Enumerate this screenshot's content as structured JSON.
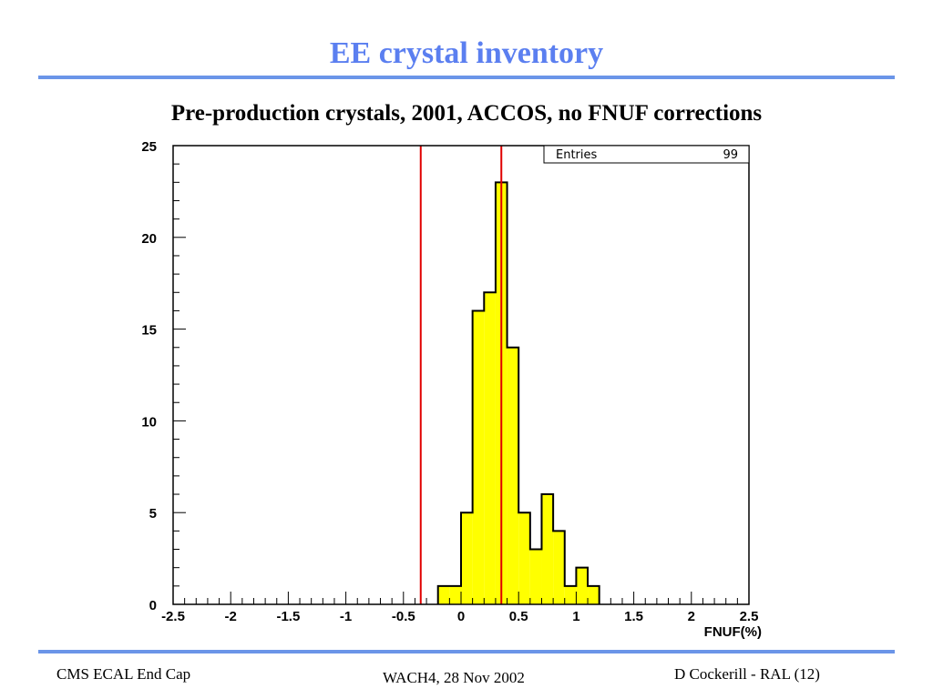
{
  "header": {
    "title": "EE crystal inventory",
    "subtitle": "Pre-production crystals, 2001, ACCOS, no FNUF corrections"
  },
  "footer": {
    "left": "CMS ECAL End Cap",
    "center": "WACH4, 28 Nov 2002",
    "right": "D Cockerill - RAL (12)"
  },
  "colors": {
    "title": "#5b7ff0",
    "rule": "#6b95e8",
    "bar_fill": "#ffff00",
    "bar_stroke": "#000000",
    "cut_line": "#e00000"
  },
  "chart_data": {
    "type": "bar",
    "title": "",
    "xlabel": "FNUF(%)",
    "ylabel": "",
    "xlim": [
      -2.5,
      2.5
    ],
    "ylim": [
      0,
      25
    ],
    "x_ticks": [
      "-2.5",
      "-2",
      "-1.5",
      "-1",
      "-0.5",
      "0",
      "0.5",
      "1",
      "1.5",
      "2",
      "2.5"
    ],
    "y_ticks": [
      "0",
      "5",
      "10",
      "15",
      "20",
      "25"
    ],
    "bin_width": 0.1,
    "bin_edges": [
      -0.2,
      -0.1,
      0.0,
      0.1,
      0.2,
      0.3,
      0.4,
      0.5,
      0.6,
      0.7,
      0.8,
      0.9,
      1.0,
      1.1,
      1.2
    ],
    "values": [
      1,
      1,
      5,
      16,
      17,
      23,
      14,
      5,
      3,
      6,
      4,
      1,
      2,
      1
    ],
    "cut_lines": [
      -0.35,
      0.35
    ],
    "stats_box": {
      "label": "Entries",
      "value": "99"
    },
    "grid": false,
    "legend": "none"
  }
}
